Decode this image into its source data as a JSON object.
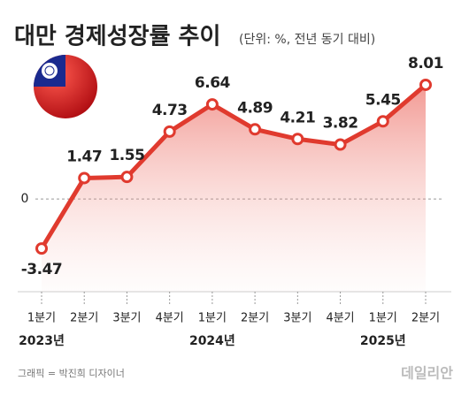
{
  "chart_data": {
    "type": "line",
    "title": "대만 경제성장률 추이",
    "subtitle": "(단위: %, 전년 동기 대비)",
    "categories": [
      "1분기",
      "2분기",
      "3분기",
      "4분기",
      "1분기",
      "2분기",
      "3분기",
      "4분기",
      "1분기",
      "2분기"
    ],
    "category_groups": [
      "2023년",
      null,
      null,
      null,
      "2024년",
      null,
      null,
      null,
      "2025년",
      null
    ],
    "values": [
      -3.47,
      1.47,
      1.55,
      4.73,
      6.64,
      4.89,
      4.21,
      3.82,
      5.45,
      8.01
    ],
    "color": "#e03a2e",
    "ylim": [
      -6.5,
      9
    ],
    "yticks": [
      0
    ]
  },
  "credit": "그래픽 = 박진희 디자이너",
  "watermark": "데일리안"
}
